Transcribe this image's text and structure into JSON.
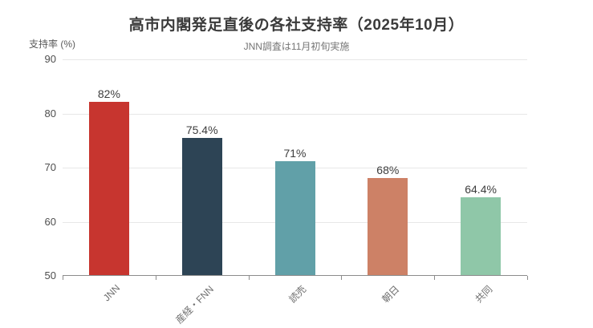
{
  "chart_data": {
    "type": "bar",
    "title": "高市内閣発足直後の各社支持率（2025年10月）",
    "subtitle": "JNN調査は11月初旬実施",
    "ylabel": "支持率 (%)",
    "xlabel": "",
    "categories": [
      "JNN",
      "産経・FNN",
      "読売",
      "朝日",
      "共同"
    ],
    "values": [
      82,
      75.4,
      71,
      68,
      64.4
    ],
    "value_labels": [
      "82%",
      "75.4%",
      "71%",
      "68%",
      "64.4%"
    ],
    "bar_colors": [
      "#c7352f",
      "#2d4455",
      "#61a0a8",
      "#cd8166",
      "#8fc7a8"
    ],
    "ylim": [
      50,
      90
    ],
    "y_ticks": [
      90,
      80,
      70,
      60,
      50
    ],
    "grid": true,
    "legend": false,
    "legend_position": "none"
  },
  "style_colors": {
    "background": "#ffffff",
    "title_text": "#3a3a3a",
    "subtitle_text": "#757575",
    "axis_name_text": "#5a5a5a",
    "y_tick_text": "#4e4e4e",
    "value_label_text": "#3d3d3d",
    "category_text": "#6e6e6e",
    "gridline": "#e7e7e7",
    "axis_line": "#8c8c8c"
  }
}
